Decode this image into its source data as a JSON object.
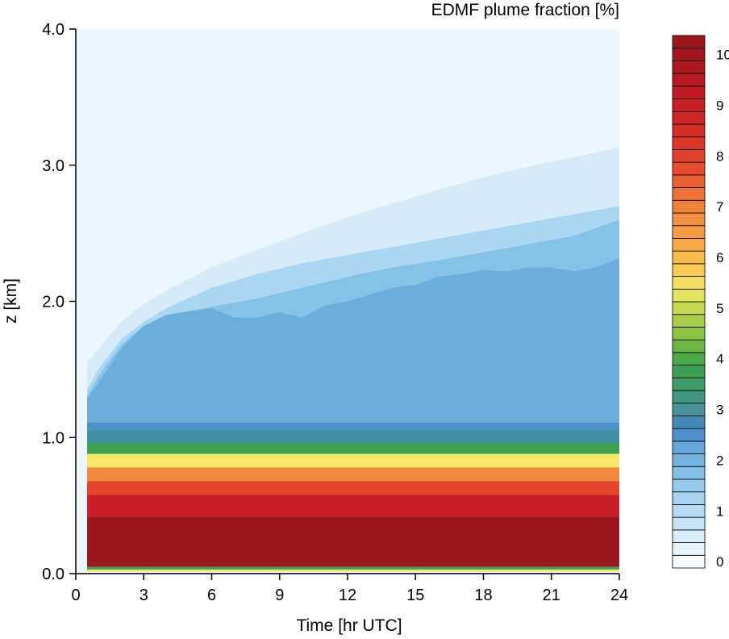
{
  "chart_data": {
    "type": "heatmap",
    "subtype": "filled-contour",
    "title": "EDMF plume fraction  [%]",
    "xlabel": "Time  [hr UTC]",
    "ylabel": "z  [km]",
    "xlim": [
      0,
      24
    ],
    "ylim": [
      0.0,
      4.0
    ],
    "x_ticks": [
      0,
      3,
      6,
      9,
      12,
      15,
      18,
      21,
      24
    ],
    "x_tick_labels": [
      "0",
      "3",
      "6",
      "9",
      "12",
      "15",
      "18",
      "21",
      "24"
    ],
    "y_ticks": [
      0.0,
      1.0,
      2.0,
      3.0,
      4.0
    ],
    "y_tick_labels": [
      "0.0",
      "1.0",
      "2.0",
      "3.0",
      "4.0"
    ],
    "data_x_start": 0.5,
    "colorbar": {
      "min": 0,
      "max": 10.5,
      "step": 0.25,
      "tick_values": [
        0,
        1,
        2,
        3,
        4,
        5,
        6,
        7,
        8,
        9,
        10
      ],
      "tick_labels": [
        "0",
        "1",
        "2",
        "3",
        "4",
        "5",
        "6",
        "7",
        "8",
        "9",
        "10"
      ]
    },
    "colors": {
      "background": "#eef6fd",
      "pale_edge": "#d6ebf9",
      "light_blue": "#a9d7f1",
      "mid_blue": "#86c1e8",
      "blue": "#6aaedc",
      "blue_band": "#4d8fca",
      "teal": "#4290a5",
      "green": "#3ea14f",
      "yellow": "#f5e66a",
      "orange": "#f08a3a",
      "red_orange": "#e2462c",
      "red": "#c71f25",
      "dark_red": "#9c171d"
    },
    "contours": {
      "pale_top_km": [
        [
          0.5,
          1.55
        ],
        [
          1,
          1.65
        ],
        [
          2,
          1.85
        ],
        [
          3,
          1.98
        ],
        [
          4,
          2.08
        ],
        [
          6,
          2.25
        ],
        [
          8,
          2.38
        ],
        [
          10,
          2.5
        ],
        [
          12,
          2.62
        ],
        [
          14,
          2.72
        ],
        [
          16,
          2.82
        ],
        [
          18,
          2.91
        ],
        [
          20,
          2.99
        ],
        [
          22,
          3.06
        ],
        [
          24,
          3.13
        ]
      ],
      "light_blue_top_km": [
        [
          0.5,
          1.35
        ],
        [
          1,
          1.5
        ],
        [
          2,
          1.72
        ],
        [
          3,
          1.85
        ],
        [
          4,
          1.95
        ],
        [
          6,
          2.1
        ],
        [
          8,
          2.2
        ],
        [
          10,
          2.28
        ],
        [
          12,
          2.34
        ],
        [
          14,
          2.4
        ],
        [
          16,
          2.46
        ],
        [
          18,
          2.52
        ],
        [
          20,
          2.58
        ],
        [
          22,
          2.64
        ],
        [
          24,
          2.7
        ]
      ],
      "mid_blue_top_km": [
        [
          0.5,
          1.3
        ],
        [
          1,
          1.45
        ],
        [
          2,
          1.68
        ],
        [
          3,
          1.82
        ],
        [
          4,
          1.9
        ],
        [
          6,
          1.96
        ],
        [
          8,
          2.02
        ],
        [
          10,
          2.1
        ],
        [
          12,
          2.18
        ],
        [
          14,
          2.25
        ],
        [
          16,
          2.3
        ],
        [
          18,
          2.36
        ],
        [
          20,
          2.42
        ],
        [
          22,
          2.48
        ],
        [
          24,
          2.6
        ]
      ],
      "blue_top_km": [
        [
          0.5,
          1.28
        ],
        [
          1,
          1.4
        ],
        [
          2,
          1.65
        ],
        [
          3,
          1.82
        ],
        [
          4,
          1.9
        ],
        [
          6,
          1.95
        ],
        [
          7,
          1.88
        ],
        [
          8,
          1.88
        ],
        [
          9,
          1.92
        ],
        [
          10,
          1.88
        ],
        [
          11,
          1.97
        ],
        [
          12,
          2.0
        ],
        [
          13,
          2.05
        ],
        [
          14,
          2.1
        ],
        [
          15,
          2.12
        ],
        [
          16,
          2.18
        ],
        [
          17,
          2.2
        ],
        [
          18,
          2.23
        ],
        [
          19,
          2.22
        ],
        [
          20,
          2.25
        ],
        [
          21,
          2.25
        ],
        [
          22,
          2.22
        ],
        [
          23,
          2.25
        ],
        [
          24,
          2.32
        ]
      ],
      "boundary_layer_km": {
        "blue_band_top": 1.11,
        "blue_band_bottom": 1.06,
        "teal_bottom": 0.96,
        "green_bottom": 0.88,
        "yellow_bottom": 0.78,
        "orange_bottom": 0.68,
        "red_orange_bottom": 0.58,
        "red_bottom": 0.42,
        "dark_red_bottom": 0.05
      }
    }
  }
}
